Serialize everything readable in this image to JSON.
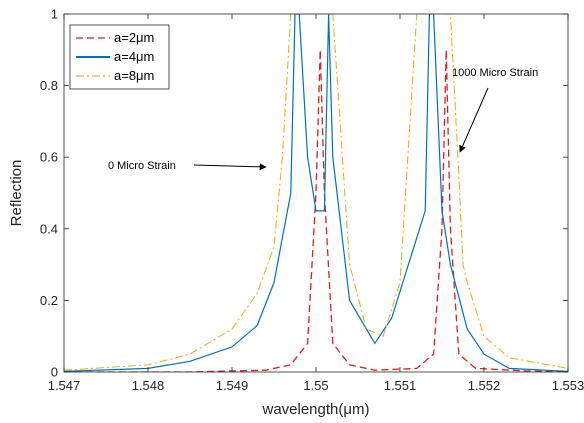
{
  "chart_data": {
    "type": "line",
    "xlabel": "wavelength(μm)",
    "ylabel": "Reflection",
    "xlim": [
      1.547,
      1.553
    ],
    "ylim": [
      0,
      1
    ],
    "xticks": [
      "1.547",
      "1.548",
      "1.549",
      "1.55",
      "1.551",
      "1.552",
      "1.553"
    ],
    "yticks": [
      "0",
      "0.2",
      "0.4",
      "0.6",
      "0.8",
      "1"
    ],
    "grid": false,
    "legend_position": "top-left",
    "series": [
      {
        "name": "a=2μm",
        "color": "#e41a1c",
        "style": "dashed",
        "x": [
          1.547,
          1.5485,
          1.5494,
          1.5497,
          1.5499,
          1.55,
          1.55005,
          1.5501,
          1.5502,
          1.5504,
          1.5507,
          1.5512,
          1.5514,
          1.5515,
          1.55155,
          1.5516,
          1.5517,
          1.5519,
          1.5525,
          1.553
        ],
        "y": [
          0,
          0,
          0.005,
          0.02,
          0.08,
          0.5,
          0.9,
          0.5,
          0.08,
          0.02,
          0.005,
          0.01,
          0.05,
          0.4,
          0.9,
          0.4,
          0.05,
          0.01,
          0.003,
          0
        ]
      },
      {
        "name": "a=4μm",
        "color": "#0072bd",
        "style": "solid",
        "x": [
          1.547,
          1.548,
          1.5485,
          1.549,
          1.5493,
          1.5495,
          1.5497,
          1.54975,
          1.5498,
          1.5499,
          1.55,
          1.5501,
          1.55015,
          1.5502,
          1.5504,
          1.5507,
          1.5509,
          1.5511,
          1.5513,
          1.55135,
          1.5514,
          1.5515,
          1.5516,
          1.5518,
          1.552,
          1.5523,
          1.553
        ],
        "y": [
          0.002,
          0.01,
          0.03,
          0.07,
          0.13,
          0.25,
          0.5,
          1,
          1,
          0.6,
          0.45,
          0.45,
          1,
          0.6,
          0.2,
          0.08,
          0.15,
          0.3,
          0.45,
          1,
          1,
          0.45,
          0.3,
          0.12,
          0.05,
          0.01,
          0.002
        ]
      },
      {
        "name": "a=8μm",
        "color": "#edb120",
        "style": "dashdot",
        "x": [
          1.547,
          1.548,
          1.5485,
          1.549,
          1.5493,
          1.5495,
          1.5496,
          1.5497,
          1.54975,
          1.5498,
          1.5499,
          1.55,
          1.5502,
          1.5504,
          1.5506,
          1.5508,
          1.551,
          1.5512,
          1.5514,
          1.5516,
          1.5517,
          1.55175,
          1.5518,
          1.552,
          1.5523,
          1.553
        ],
        "y": [
          0.005,
          0.02,
          0.05,
          0.12,
          0.22,
          0.35,
          0.6,
          1,
          1,
          1,
          1,
          1,
          1,
          0.3,
          0.12,
          0.1,
          0.25,
          1,
          1,
          1,
          0.55,
          0.3,
          0.25,
          0.1,
          0.04,
          0.01
        ]
      }
    ],
    "annotations": [
      {
        "text": "0 Micro Strain",
        "x": 1.5475,
        "y": 0.58
      },
      {
        "text": "1000 Micro Strain",
        "x": 1.5519,
        "y": 0.84
      }
    ]
  }
}
